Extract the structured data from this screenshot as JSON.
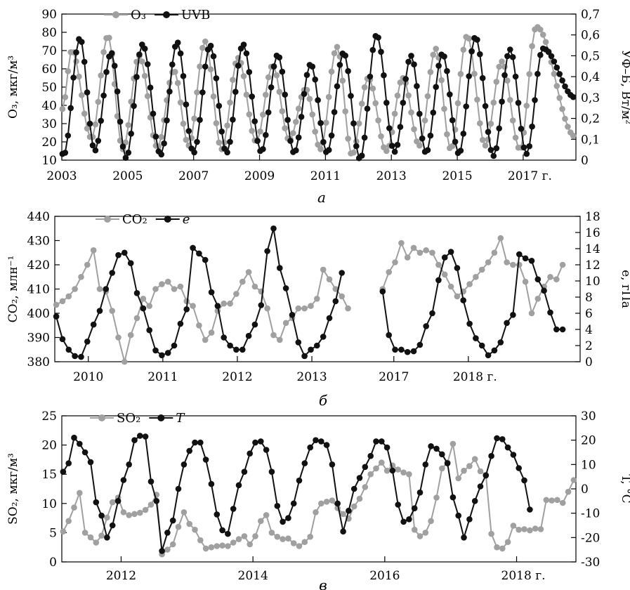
{
  "colors": {
    "gray": "#a0a0a0",
    "black": "#111111"
  },
  "chart_data": [
    {
      "id": "a",
      "type": "line",
      "panel_label": "а",
      "x_axis": {
        "ticks": [
          {
            "v": 2003,
            "label": "2003"
          },
          {
            "v": 2005,
            "label": "2005"
          },
          {
            "v": 2007,
            "label": "2007"
          },
          {
            "v": 2009,
            "label": "2009"
          },
          {
            "v": 2011,
            "label": "2011"
          },
          {
            "v": 2013,
            "label": "2013"
          },
          {
            "v": 2015,
            "label": "2015"
          },
          {
            "v": 2017,
            "label": "2017 г."
          }
        ],
        "range": [
          2003,
          2018.6
        ]
      },
      "y_left": {
        "label": "O₃, мкг/м³",
        "range": [
          10,
          90
        ],
        "ticks": [
          10,
          20,
          30,
          40,
          50,
          60,
          70,
          80,
          90
        ]
      },
      "y_right": {
        "label": "УФ–Б, Вт/м²",
        "range": [
          0,
          0.7
        ],
        "ticks": [
          "0",
          "0,1",
          "0,2",
          "0,3",
          "0,4",
          "0,5",
          "0,6",
          "0,7"
        ]
      },
      "legend": [
        "O₃",
        "UVB"
      ],
      "series": [
        {
          "name": "O₃",
          "axis": "left",
          "color": "gray",
          "peak_x": [
            2003.3,
            2004.4,
            2005.35,
            2006.4,
            2007.35,
            2008.35,
            2009.4,
            2010.4,
            2011.35,
            2012.3,
            2013.35,
            2014.35,
            2015.3,
            2016.35,
            2017.4
          ],
          "peak_y": [
            70,
            78,
            67,
            59,
            75,
            66,
            62,
            49,
            72,
            55,
            55,
            71,
            78,
            64,
            83
          ],
          "trough_y": [
            15,
            22,
            16,
            17,
            18,
            16,
            20,
            21,
            16,
            13,
            15,
            18,
            16,
            18,
            16
          ],
          "start": 38,
          "end": 23
        },
        {
          "name": "UVB",
          "axis": "right",
          "color": "black",
          "peak_x": [
            2003.55,
            2004.5,
            2005.45,
            2006.5,
            2007.5,
            2008.5,
            2009.55,
            2010.55,
            2011.55,
            2012.55,
            2013.6,
            2014.55,
            2015.55,
            2016.6,
            2017.6
          ],
          "peak_y": [
            0.585,
            0.515,
            0.555,
            0.565,
            0.55,
            0.555,
            0.505,
            0.46,
            0.515,
            0.6,
            0.5,
            0.51,
            0.59,
            0.53,
            0.535
          ],
          "trough_y": [
            0.02,
            0.045,
            0.01,
            0.025,
            0.035,
            0.035,
            0.04,
            0.035,
            0.035,
            0.005,
            0.04,
            0.035,
            0.03,
            0.02,
            0.03
          ],
          "start": 0.03,
          "end": 0.3
        }
      ]
    },
    {
      "id": "b",
      "type": "line",
      "panel_label": "б",
      "x_axis": {
        "ticks": [
          {
            "v": 2010,
            "label": "2010"
          },
          {
            "v": 2011,
            "label": "2011"
          },
          {
            "v": 2012,
            "label": "2012"
          },
          {
            "v": 2013,
            "label": "2013"
          },
          {
            "v": 2014.1,
            "label": "2017"
          },
          {
            "v": 2015.1,
            "label": "2018 г."
          }
        ],
        "range": [
          2009.55,
          2016.6
        ]
      },
      "y_left": {
        "label": "CO₂, млн⁻¹",
        "range": [
          380,
          440
        ],
        "ticks": [
          380,
          390,
          400,
          410,
          420,
          430,
          440
        ]
      },
      "y_right": {
        "label": "e, гПа",
        "range": [
          0,
          18
        ],
        "ticks": [
          0,
          2,
          4,
          6,
          8,
          10,
          12,
          14,
          16,
          18
        ]
      },
      "legend": [
        "CO₂",
        "e"
      ],
      "series": [
        {
          "name": "CO₂",
          "axis": "left",
          "color": "gray",
          "segments": [
            {
              "x0": 2009.57,
              "dx": 0.0833,
              "y": [
                403.5,
                405,
                407,
                410,
                415,
                420,
                426,
                410,
                409,
                401,
                390,
                380,
                391,
                398,
                406,
                403,
                410,
                412,
                413,
                410,
                411,
                405,
                403,
                395,
                389,
                392,
                401,
                404,
                404,
                408,
                413,
                417,
                411,
                409,
                402,
                391,
                389,
                396,
                398,
                402,
                402,
                403,
                406,
                418,
                414,
                410,
                407,
                402
              ]
            },
            {
              "x0": 2013.95,
              "dx": 0.0833,
              "y": [
                410,
                417,
                421,
                429,
                423,
                427,
                425,
                426,
                425,
                420,
                416,
                411,
                407,
                409,
                412,
                415,
                418,
                421,
                425,
                431,
                421,
                420,
                420,
                413,
                400,
                406,
                411,
                415,
                414,
                420
              ]
            }
          ]
        },
        {
          "name": "e",
          "axis": "right",
          "color": "black",
          "segments": [
            {
              "x0": 2009.57,
              "dx": 0.0833,
              "y": [
                5.6,
                2.8,
                1.5,
                0.7,
                0.6,
                2.5,
                4.6,
                6.3,
                9,
                11,
                13.2,
                13.5,
                12.2,
                8.5,
                6.6,
                3.9,
                1.4,
                0.8,
                1.1,
                2,
                4.7,
                6.5,
                14.1,
                13.4,
                12.6,
                8.6,
                6.9,
                3,
                2,
                1.5,
                1.5,
                3.2,
                4.6,
                7,
                13.7,
                16.5,
                11.6,
                9.1,
                5.8,
                2.4,
                0.7,
                1.5,
                2,
                3.1,
                5.4,
                7.5,
                11
              ]
            },
            {
              "x0": 2013.95,
              "dx": 0.0833,
              "y": [
                8.7,
                3.3,
                1.5,
                1.5,
                1.2,
                1.3,
                2.1,
                4.4,
                6,
                10.1,
                12.9,
                13.6,
                11.6,
                7.6,
                4.7,
                2.9,
                2,
                0.8,
                1.4,
                2.4,
                4.8,
                5.8,
                13.3,
                12.8,
                12.5,
                10.2,
                8.8,
                6.1,
                4,
                4
              ]
            }
          ]
        }
      ]
    },
    {
      "id": "c",
      "type": "line",
      "panel_label": "в",
      "x_axis": {
        "ticks": [
          {
            "v": 2012,
            "label": "2012"
          },
          {
            "v": 2014,
            "label": "2014"
          },
          {
            "v": 2016,
            "label": "2016"
          },
          {
            "v": 2018,
            "label": "2018 г."
          }
        ],
        "range": [
          2011.1,
          2018.9
        ]
      },
      "y_left": {
        "label": "SO₂, мкг/м³",
        "range": [
          0,
          25
        ],
        "ticks": [
          0,
          5,
          10,
          15,
          20,
          25
        ]
      },
      "y_right": {
        "label": "T, °C",
        "range": [
          -30,
          30
        ],
        "ticks": [
          -30,
          -20,
          -10,
          0,
          10,
          20,
          30
        ]
      },
      "legend": [
        "SO₂",
        "T"
      ],
      "series": [
        {
          "name": "SO₂",
          "axis": "left",
          "color": "gray",
          "segments": [
            {
              "x0": 2011.12,
              "dx": 0.0833,
              "y": [
                5.2,
                7,
                9.3,
                11.8,
                5,
                4.2,
                3.3,
                4.5,
                7.6,
                10.2,
                11,
                8.5,
                8,
                8.2,
                8.4,
                8.9,
                9.8,
                11.5,
                1.3,
                2.1,
                3,
                6,
                8.5,
                6.5,
                5.5,
                3.7,
                2.3,
                2.5,
                2.7,
                2.8,
                2.7,
                3.3,
                3.9,
                4.4,
                3,
                4.4,
                7,
                8,
                5,
                4.3,
                3.9,
                4,
                3.2,
                2.7,
                3.4,
                4.3,
                8.5,
                10,
                10.3,
                10.5,
                9.2,
                8.2,
                7.4,
                9.5,
                10.8,
                12.8,
                15,
                16,
                17,
                15.6,
                16.5,
                15.8,
                15.3,
                15,
                5.5,
                4.4,
                5,
                7,
                11,
                16,
                17,
                20.2,
                14.3,
                15.6,
                16.4,
                17.6,
                15.5,
                14.9,
                4.8,
                2.5,
                2.3,
                3.4,
                6.2,
                5.5,
                5.6,
                5.4,
                5.7,
                5.6,
                10.6,
                10.5,
                10.6,
                10.1,
                12,
                14
              ]
            }
          ]
        },
        {
          "name": "T",
          "axis": "right",
          "color": "black",
          "segments": [
            {
              "x0": 2011.12,
              "dx": 0.0833,
              "y": [
                7,
                10.5,
                21,
                18.5,
                15,
                11,
                -5.5,
                -11,
                -20,
                -15,
                -5,
                3.6,
                10,
                20,
                21.8,
                21.5,
                3,
                -5,
                -25.5,
                -18,
                -13,
                0,
                10,
                15.6,
                19,
                19,
                12,
                2,
                -10.5,
                -17,
                -18.5,
                -8.2,
                1.5,
                7,
                14.5,
                19,
                19.5,
                16,
                7,
                -7,
                -13.5,
                -12,
                -6,
                3.4,
                10.5,
                17,
                20,
                19.5,
                18,
                10,
                -6,
                -17.5,
                -9,
                0,
                4.5,
                9,
                13.5,
                19.5,
                19.5,
                17,
                7.5,
                -6.5,
                -13.5,
                -12.5,
                -8,
                -1.5,
                10,
                17.5,
                16.5,
                14.2,
                10.5,
                -3.5,
                -11,
                -20,
                -12.5,
                -5,
                1,
                5.5,
                13.5,
                20.8,
                20.4,
                17,
                14,
                8.5,
                3.5,
                -8.5
              ]
            }
          ]
        }
      ]
    }
  ]
}
